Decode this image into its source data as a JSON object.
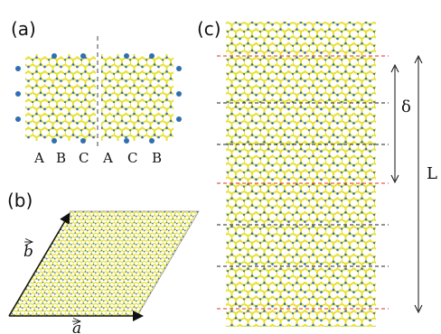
{
  "panels": {
    "a": {
      "label": "(a)",
      "stacking_letters": [
        "A",
        "B",
        "C",
        "A",
        "C",
        "B"
      ]
    },
    "b": {
      "label": "(b)",
      "vector_b": "b",
      "vector_a": "a"
    },
    "c": {
      "label": "(c)",
      "delta": "δ",
      "L": "L"
    }
  },
  "colors": {
    "bond_yellow": "#e8e030",
    "atom_blue": "#2f6fb0",
    "red_dash": "#e03020",
    "black_dash": "#222222"
  }
}
